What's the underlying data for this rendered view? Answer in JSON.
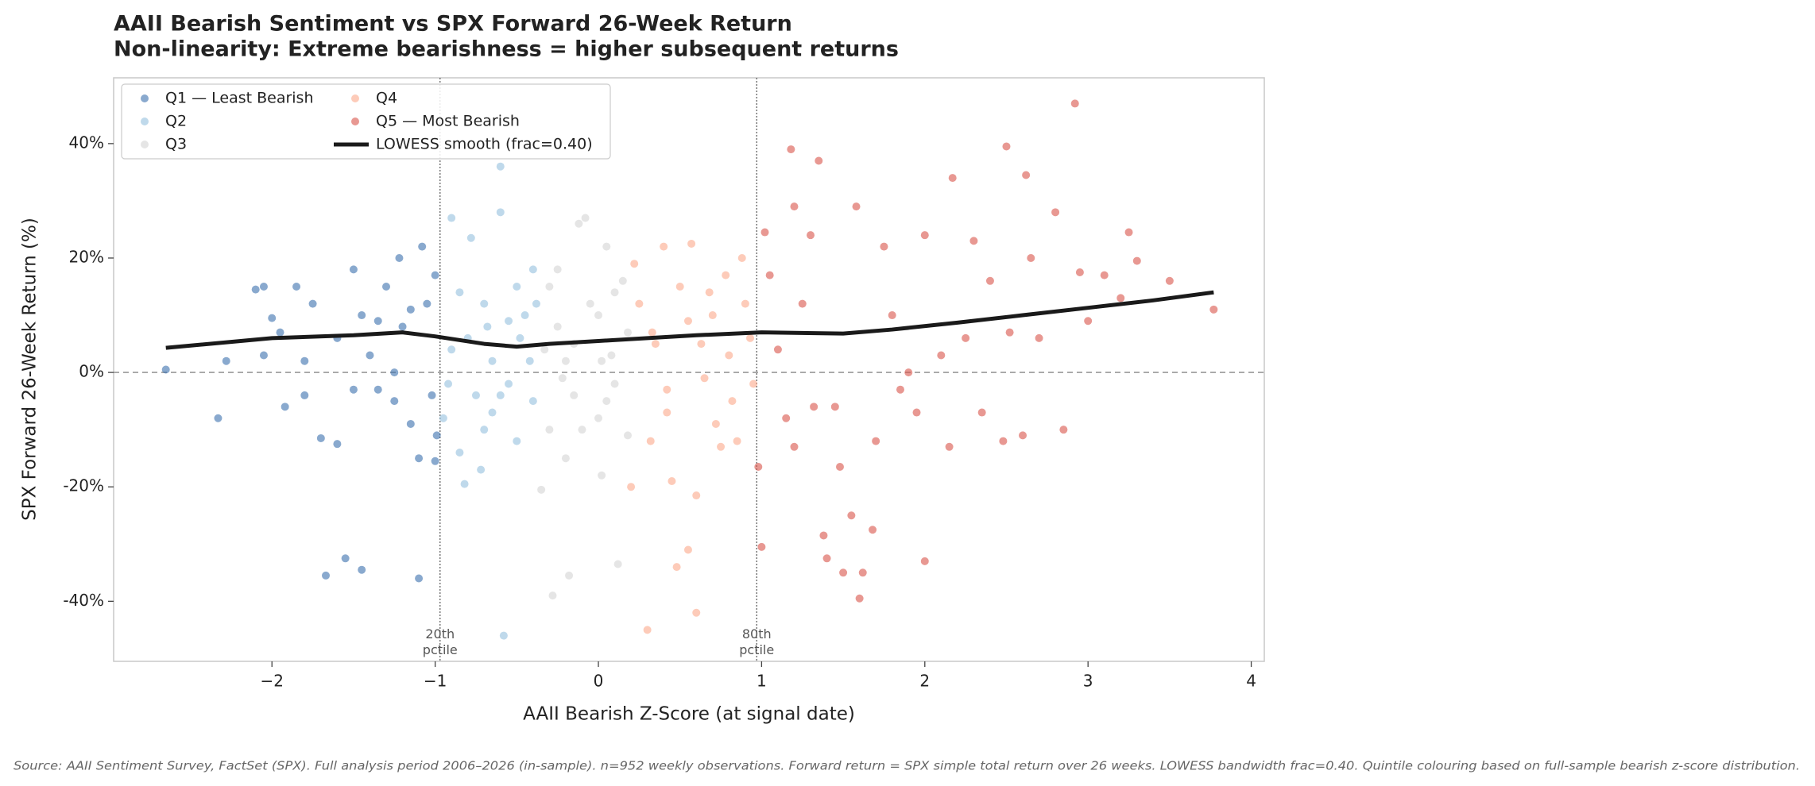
{
  "chart_data": {
    "type": "scatter",
    "title": "AAII Bearish Sentiment vs SPX Forward 26-Week Return",
    "subtitle": "Non-linearity: Extreme bearishness = higher subsequent returns",
    "x_label": "AAII Bearish Z-Score (at signal date)",
    "y_label": "SPX Forward 26-Week Return (%)",
    "source": "Source: AAII Sentiment Survey, FactSet (SPX). Full analysis period 2006–2026 (in-sample). n=952 weekly observations. Forward return = SPX simple total return over 26 weeks. LOWESS bandwidth frac=0.40. Quintile colouring based on full-sample bearish z-score distribution.",
    "xlim": [
      -2.97,
      4.08
    ],
    "ylim": [
      -50.5,
      51.5
    ],
    "xticks": [
      {
        "value": -2,
        "label": "−2"
      },
      {
        "value": -1,
        "label": "−1"
      },
      0,
      1,
      2,
      3,
      4
    ],
    "yticks": [
      {
        "value": -40,
        "label": "-40%"
      },
      {
        "value": -20,
        "label": "-20%"
      },
      {
        "value": 0,
        "label": "0%"
      },
      {
        "value": 20,
        "label": "20%"
      },
      {
        "value": 40,
        "label": "40%"
      }
    ],
    "hline": 0,
    "vlines": [
      {
        "value": -0.97,
        "label": "20th\npctile"
      },
      {
        "value": 0.97,
        "label": "80th\npctile"
      }
    ],
    "legend": "upper left",
    "series": [
      {
        "name": "Q1 — Least Bearish",
        "color": "#3a6fae",
        "type": "scatter",
        "x": [
          -2.65,
          -2.33,
          -2.28,
          -2.1,
          -2.05,
          -2,
          -1.95,
          -1.92,
          -1.85,
          -1.8,
          -1.75,
          -1.7,
          -1.67,
          -1.6,
          -1.55,
          -1.5,
          -1.45,
          -1.45,
          -1.4,
          -1.35,
          -1.3,
          -1.25,
          -1.22,
          -1.2,
          -1.15,
          -1.1,
          -1.1,
          -1.08,
          -1.05,
          -1.02,
          -1,
          -1,
          -0.99,
          -1.6,
          -1.8,
          -1.35,
          -1.15,
          -1.25,
          -2.05,
          -1.5
        ],
        "values": [
          0.5,
          -8,
          2,
          14.5,
          15,
          9.5,
          7,
          -6,
          15,
          -4,
          12,
          -11.5,
          -35.5,
          -12.5,
          -32.5,
          18,
          -34.5,
          10,
          3,
          -3,
          15,
          -5,
          20,
          8,
          -9,
          -15,
          -36,
          22,
          12,
          -4,
          -15.5,
          17,
          -11,
          6,
          2,
          9,
          11,
          0,
          3,
          -3
        ]
      },
      {
        "name": "Q2",
        "color": "#94c0de",
        "type": "scatter",
        "x": [
          -0.95,
          -0.9,
          -0.9,
          -0.85,
          -0.82,
          -0.78,
          -0.75,
          -0.72,
          -0.7,
          -0.68,
          -0.65,
          -0.6,
          -0.6,
          -0.58,
          -0.55,
          -0.5,
          -0.5,
          -0.45,
          -0.42,
          -0.4,
          -0.4,
          -0.85,
          -0.8,
          -0.65,
          -0.55,
          -0.92,
          -0.7,
          -0.48,
          -0.38,
          -0.6
        ],
        "values": [
          -8,
          27,
          4,
          -14,
          -19.5,
          23.5,
          -4,
          -17,
          12,
          8,
          -7,
          36,
          28,
          -46,
          -2,
          15,
          -12,
          10,
          2,
          18,
          -5,
          14,
          6,
          2,
          9,
          -2,
          -10,
          6,
          12,
          -4
        ]
      },
      {
        "name": "Q3",
        "color": "#d4d4d4",
        "type": "scatter",
        "x": [
          -0.35,
          -0.3,
          -0.3,
          -0.28,
          -0.25,
          -0.22,
          -0.2,
          -0.18,
          -0.15,
          -0.12,
          -0.1,
          -0.08,
          -0.05,
          0,
          0.02,
          0.05,
          0.08,
          0.1,
          0.12,
          0.15,
          0.18,
          -0.25,
          -0.2,
          0,
          0.05,
          -0.33,
          0.1,
          -0.15,
          0.18,
          0.02
        ],
        "values": [
          -20.5,
          -10,
          15,
          -39,
          8,
          -1,
          -15,
          -35.5,
          5,
          26,
          -10,
          27,
          12,
          -8,
          -18,
          22,
          3,
          -2,
          -33.5,
          16,
          7,
          18,
          2,
          10,
          -5,
          4,
          14,
          -4,
          -11,
          2
        ]
      },
      {
        "name": "Q4",
        "color": "#fca98a",
        "type": "scatter",
        "x": [
          0.2,
          0.22,
          0.25,
          0.3,
          0.32,
          0.35,
          0.4,
          0.42,
          0.45,
          0.48,
          0.5,
          0.55,
          0.57,
          0.6,
          0.6,
          0.63,
          0.65,
          0.7,
          0.72,
          0.75,
          0.78,
          0.8,
          0.82,
          0.85,
          0.88,
          0.9,
          0.93,
          0.95,
          0.33,
          0.55,
          0.68,
          0.42
        ],
        "values": [
          -20,
          19,
          12,
          -45,
          -12,
          5,
          22,
          -3,
          -19,
          -34,
          15,
          -31,
          22.5,
          -42,
          -21.5,
          5,
          -1,
          10,
          -9,
          -13,
          17,
          3,
          -5,
          -12,
          20,
          12,
          6,
          -2,
          7,
          9,
          14,
          -7
        ]
      },
      {
        "name": "Q5 — Most Bearish",
        "color": "#d9534a",
        "type": "scatter",
        "x": [
          0.98,
          1,
          1.02,
          1.05,
          1.1,
          1.15,
          1.18,
          1.2,
          1.2,
          1.25,
          1.3,
          1.32,
          1.35,
          1.38,
          1.4,
          1.45,
          1.48,
          1.5,
          1.55,
          1.58,
          1.6,
          1.62,
          1.68,
          1.7,
          1.75,
          1.8,
          1.85,
          1.9,
          2,
          2,
          2.1,
          2.15,
          2.17,
          2.3,
          2.35,
          2.4,
          2.48,
          2.5,
          2.52,
          2.6,
          2.62,
          2.65,
          2.7,
          2.8,
          2.85,
          2.92,
          2.95,
          3,
          3.1,
          3.2,
          3.25,
          3.3,
          3.5,
          3.77,
          2.25,
          1.95
        ],
        "values": [
          -16.5,
          -30.5,
          24.5,
          17,
          4,
          -8,
          39,
          29,
          -13,
          12,
          24,
          -6,
          37,
          -28.5,
          -32.5,
          -6,
          -16.5,
          -35,
          -25,
          29,
          -39.5,
          -35,
          -27.5,
          -12,
          22,
          10,
          -3,
          0,
          -33,
          24,
          3,
          -13,
          34,
          23,
          -7,
          16,
          -12,
          39.5,
          7,
          -11,
          34.5,
          20,
          6,
          28,
          -10,
          47,
          17.5,
          9,
          17,
          13,
          24.5,
          19.5,
          16,
          11,
          6,
          -7
        ]
      },
      {
        "name": "LOWESS smooth (frac=0.40)",
        "color": "#1a1a1a",
        "type": "line",
        "x": [
          -2.65,
          -2,
          -1.5,
          -1.2,
          -1,
          -0.7,
          -0.5,
          -0.3,
          0,
          0.3,
          0.6,
          1,
          1.5,
          1.8,
          2.2,
          2.6,
          3,
          3.4,
          3.77
        ],
        "values": [
          4.3,
          6,
          6.5,
          7,
          6.3,
          5,
          4.5,
          5,
          5.5,
          6,
          6.5,
          7,
          6.8,
          7.5,
          8.7,
          10,
          11.3,
          12.6,
          14
        ]
      }
    ]
  }
}
